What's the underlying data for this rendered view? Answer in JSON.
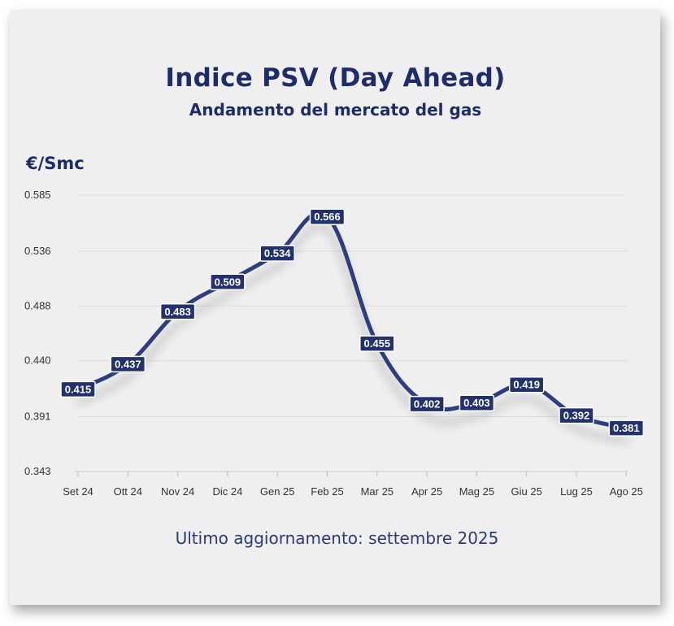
{
  "chart_data": {
    "type": "line",
    "title": "Indice PSV (Day Ahead)",
    "subtitle": "Andamento del mercato del gas",
    "ylabel": "€/Smc",
    "xlabel": "",
    "categories": [
      "Set 24",
      "Ott 24",
      "Nov 24",
      "Dic 24",
      "Gen 25",
      "Feb 25",
      "Mar 25",
      "Apr 25",
      "Mag 25",
      "Giu 25",
      "Lug 25",
      "Ago 25"
    ],
    "series": [
      {
        "name": "PSV",
        "values": [
          0.415,
          0.437,
          0.483,
          0.509,
          0.534,
          0.566,
          0.455,
          0.402,
          0.403,
          0.419,
          0.392,
          0.381
        ]
      }
    ],
    "value_labels": [
      "0.415",
      "0.437",
      "0.483",
      "0.509",
      "0.534",
      "0.566",
      "0.455",
      "0.402",
      "0.403",
      "0.419",
      "0.392",
      "0.381"
    ],
    "yticks": [
      0.343,
      0.391,
      0.44,
      0.488,
      0.536,
      0.585
    ],
    "ytick_labels": [
      "0.343",
      "0.391",
      "0.440",
      "0.488",
      "0.536",
      "0.585"
    ],
    "ylim": [
      0.343,
      0.585
    ],
    "grid": true,
    "legend": "none",
    "colors": {
      "line": "#2f3d82",
      "label_bg": "#23316e",
      "text": "#1e2c6b"
    }
  },
  "footer": "Ultimo aggiornamento: settembre 2025"
}
